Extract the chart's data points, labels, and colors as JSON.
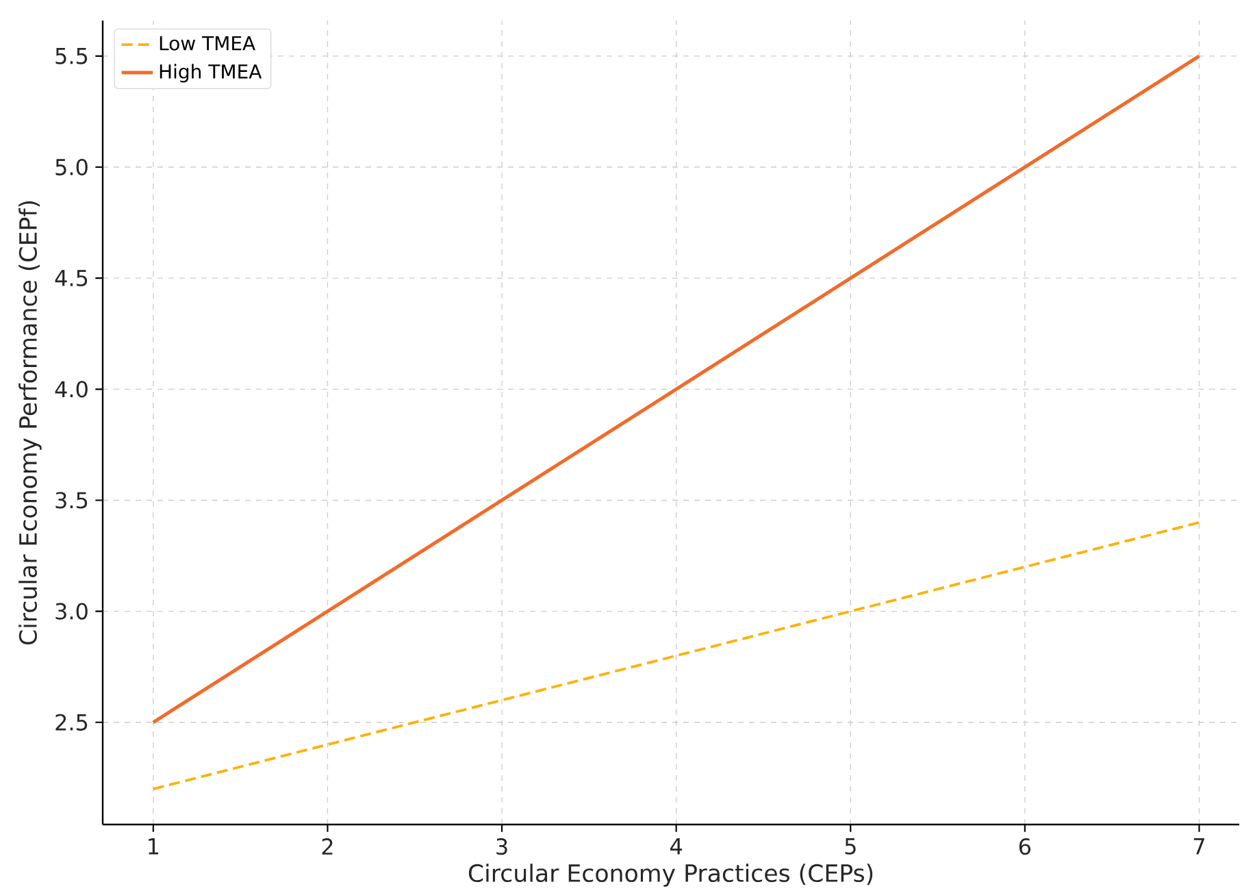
{
  "chart_data": {
    "type": "line",
    "xlabel": "Circular Economy Practices (CEPs)",
    "ylabel": "Circular Economy Performance (CEPf)",
    "x": [
      1,
      2,
      3,
      4,
      5,
      6,
      7
    ],
    "series": [
      {
        "name": "Low TMEA",
        "color": "#ffb000",
        "line_style": "dashed",
        "values": [
          2.2,
          2.4,
          2.6,
          2.8,
          3.0,
          3.2,
          3.4
        ]
      },
      {
        "name": "High TMEA",
        "color": "#f26b2a",
        "line_style": "solid",
        "values": [
          2.5,
          3.0,
          3.5,
          4.0,
          4.5,
          5.0,
          5.5
        ]
      }
    ],
    "xlim": [
      0.71,
      7.23
    ],
    "ylim": [
      2.04,
      5.66
    ],
    "xticks": [
      1,
      2,
      3,
      4,
      5,
      6,
      7
    ],
    "yticks": [
      {
        "value": 2.5,
        "label": "2.5"
      },
      {
        "value": 3.0,
        "label": "3.0"
      },
      {
        "value": 3.5,
        "label": "3.5"
      },
      {
        "value": 4.0,
        "label": "4.0"
      },
      {
        "value": 4.5,
        "label": "4.5"
      },
      {
        "value": 5.0,
        "label": "5.0"
      },
      {
        "value": 5.5,
        "label": "5.5"
      }
    ],
    "grid": true,
    "legend": "top left",
    "marker": "none"
  }
}
